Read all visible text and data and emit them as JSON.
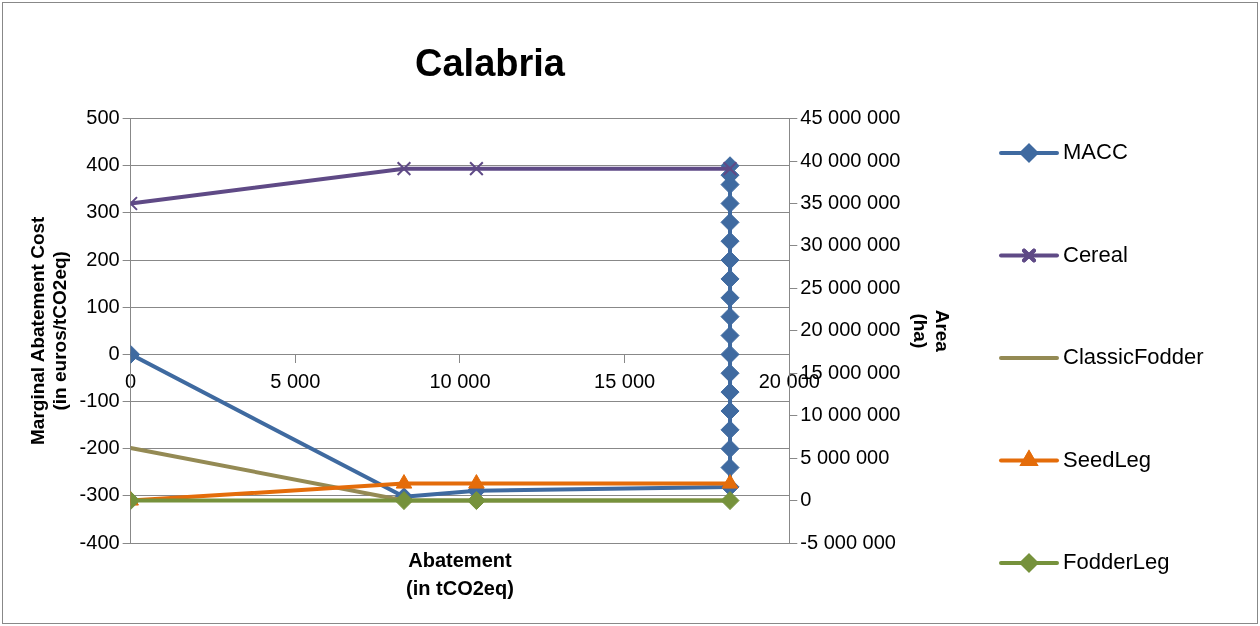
{
  "chart_data": {
    "type": "line",
    "title": "Calabria",
    "xlabel": "Abatement\n(in tCO2eq)",
    "ylabel": "Marginal Abatement Cost\n(in euros/tCO2eq)",
    "y2label": "Area\n(ha)",
    "xlim": [
      0,
      20000
    ],
    "xticks": [
      0,
      {
        "value": 5000,
        "label": "5 000"
      },
      {
        "value": 10000,
        "label": "10 000"
      },
      {
        "value": 15000,
        "label": "15 000"
      },
      {
        "value": 20000,
        "label": "20 000"
      }
    ],
    "ylim": [
      -400,
      500
    ],
    "yticks": [
      -400,
      -300,
      -200,
      -100,
      0,
      100,
      200,
      300,
      400,
      500
    ],
    "y2lim": [
      -5000000,
      45000000
    ],
    "y2ticks": [
      {
        "value": -5000000,
        "label": "-5 000 000"
      },
      0,
      {
        "value": 5000000,
        "label": "5 000 000"
      },
      {
        "value": 10000000,
        "label": "10 000 000"
      },
      {
        "value": 15000000,
        "label": "15 000 000"
      },
      {
        "value": 20000000,
        "label": "20 000 000"
      },
      {
        "value": 25000000,
        "label": "25 000 000"
      },
      {
        "value": 30000000,
        "label": "30 000 000"
      },
      {
        "value": 35000000,
        "label": "35 000 000"
      },
      {
        "value": 40000000,
        "label": "40 000 000"
      },
      {
        "value": 45000000,
        "label": "45 000 000"
      }
    ],
    "grid": "y",
    "legend": "right",
    "line_style": "solid",
    "series": [
      {
        "name": "MACC",
        "color": "#3f6aa0",
        "marker": "diamond",
        "x": [
          0,
          8300,
          10500,
          18200,
          18200,
          18200,
          18200,
          18200,
          18200,
          18200,
          18200,
          18200,
          18200,
          18200,
          18200,
          18200,
          18200,
          18200,
          18200,
          18200,
          18200,
          18200
        ],
        "values": [
          0,
          -302,
          -289,
          -281,
          -240,
          -200,
          -160,
          -120,
          -80,
          -40,
          0,
          40,
          80,
          120,
          160,
          200,
          240,
          280,
          320,
          360,
          380,
          400
        ]
      },
      {
        "name": "Cereal",
        "color": "#5f4a86",
        "marker": "cross",
        "axis": "y2",
        "x": [
          0,
          8300,
          10500,
          18200
        ],
        "values": [
          35000000,
          39100000,
          39100000,
          39100000
        ]
      },
      {
        "name": "ClassicFodder",
        "color": "#948a54",
        "marker": "none",
        "axis": "y2",
        "x": [
          0,
          8300,
          10500,
          18200
        ],
        "values": [
          6200000,
          0,
          0,
          0
        ]
      },
      {
        "name": "SeedLeg",
        "color": "#e46c0a",
        "marker": "triangle",
        "axis": "y2",
        "x": [
          0,
          8300,
          10500,
          18200
        ],
        "values": [
          0,
          2000000,
          2000000,
          2000000
        ]
      },
      {
        "name": "FodderLeg",
        "color": "#76923c",
        "marker": "diamond",
        "axis": "y2",
        "x": [
          0,
          8300,
          10500,
          18200
        ],
        "values": [
          0,
          0,
          0,
          0
        ]
      }
    ]
  }
}
